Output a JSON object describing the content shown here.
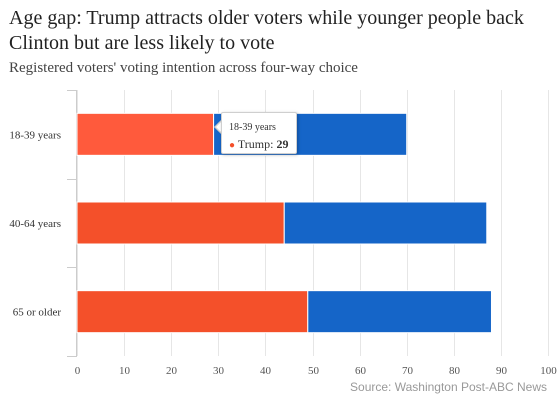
{
  "title": "Age gap: Trump attracts older voters while younger people back Clinton but are less likely to vote",
  "subtitle": "Registered voters' voting intention across four-way choice",
  "source": "Source: Washington Post-ABC News",
  "tooltip": {
    "category": "18-39 years",
    "series": "Trump",
    "value": "29"
  },
  "chart_data": {
    "type": "bar",
    "orientation": "horizontal",
    "stacked": true,
    "categories": [
      "18-39 years",
      "40-64 years",
      "65 or older"
    ],
    "series": [
      {
        "name": "Trump",
        "color": "#f4502a",
        "values": [
          29,
          44,
          49
        ]
      },
      {
        "color": "#1565c8",
        "values": [
          41,
          43,
          39
        ]
      }
    ],
    "xlim": [
      0,
      100
    ],
    "xticks": [
      0,
      10,
      20,
      30,
      40,
      50,
      60,
      70,
      80,
      90,
      100
    ],
    "grid": true,
    "highlighted": {
      "category": "18-39 years",
      "series": "Trump",
      "color": "#ff5a3c"
    }
  }
}
